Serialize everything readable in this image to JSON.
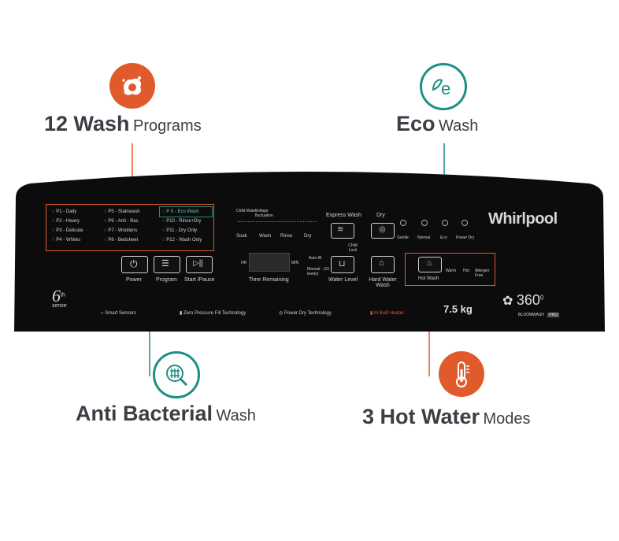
{
  "features": {
    "wash_programs": {
      "big": "12 Wash",
      "small": "Programs",
      "icon": "stain-splash-icon"
    },
    "eco": {
      "big": "Eco",
      "small": "Wash",
      "icon": "eco-e-icon"
    },
    "anti_bacterial": {
      "big": "Anti Bacterial",
      "small": "Wash",
      "icon": "anti-bacterial-icon"
    },
    "hot_water": {
      "big": "3 Hot Water",
      "small": "Modes",
      "icon": "thermometer-icon"
    }
  },
  "colors": {
    "orange": "#e05a2b",
    "teal": "#1e8f84",
    "panel": "#0c0c0c",
    "text": "#3d3d45"
  },
  "panel": {
    "programs": {
      "col1": [
        "P1 - Daily",
        "P2 - Heavy",
        "P3 - Delicate",
        "P4 - Whites"
      ],
      "col2": [
        "P5 - Stainwash",
        "P6 - Anti - Bac",
        "P7 - Woollens",
        "P8 - Bedsheet"
      ],
      "col3": [
        "P 9 - Eco Wash",
        "P10 - Rinse+Dry",
        "P11 - Dry Only",
        "P12 - Wash Only"
      ]
    },
    "top_labels": {
      "child_water": "Child Water",
      "voltage": "Voltage fluctuation"
    },
    "stages": [
      "Soak",
      "Wash",
      "Rinse",
      "Dry"
    ],
    "express_wash": "Express Wash",
    "dry": "Dry",
    "dry_modes": [
      "Gentle",
      "Normal",
      "Eco",
      "Power Dry"
    ],
    "child_lock": "Child Lock",
    "buttons": {
      "power": "Power",
      "program": "Program",
      "start_pause": "Start /Pause"
    },
    "display": {
      "hr": "HR",
      "min": "MIN",
      "time_remaining": "Time Remaining"
    },
    "water_level": {
      "auto": "Auto fill",
      "manual": "Manual - (10 levels)",
      "label": "Water Level"
    },
    "hard_water": "Hard Water Wash",
    "hot_wash": "Hot Wash",
    "hot_modes": [
      "Warm",
      "Hot",
      "Allergen Free"
    ],
    "brand": "Whirlpool",
    "sense_num": "6",
    "sense_sup": "th",
    "sense_word": "sense",
    "footer": {
      "smart": "Smart Sensors",
      "zero": "Zero Pressure Fill Technology",
      "power_dry": "Power Dry Technology",
      "heater": "In Built Heater",
      "capacity": "7.5 kg"
    },
    "bloom": {
      "num": "360",
      "deg": "0",
      "line": "BLOOMWASH",
      "pro": "PRO"
    }
  }
}
